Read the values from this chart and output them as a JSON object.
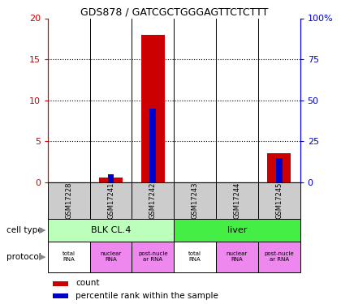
{
  "title": "GDS878 / GATCGCTGGGAGTTCTCTTT",
  "samples": [
    "GSM17228",
    "GSM17241",
    "GSM17242",
    "GSM17243",
    "GSM17244",
    "GSM17245"
  ],
  "counts": [
    0,
    0.6,
    18.0,
    0,
    0,
    3.6
  ],
  "percentiles": [
    0,
    5,
    45,
    0,
    0,
    15
  ],
  "ylim_left": [
    0,
    20
  ],
  "ylim_right": [
    0,
    100
  ],
  "yticks_left": [
    0,
    5,
    10,
    15,
    20
  ],
  "yticks_right": [
    0,
    25,
    50,
    75,
    100
  ],
  "bar_width": 0.55,
  "blue_bar_width": 0.15,
  "count_color": "#cc0000",
  "percentile_color": "#0000cc",
  "cell_type_row": {
    "groups": [
      {
        "label": "BLK CL.4",
        "start": 0,
        "end": 3,
        "color": "#bbffbb"
      },
      {
        "label": "liver",
        "start": 3,
        "end": 6,
        "color": "#44ee44"
      }
    ]
  },
  "protocol_row": {
    "labels": [
      "total\nRNA",
      "nuclear\nRNA",
      "post-nucle\nar RNA",
      "total\nRNA",
      "nuclear\nRNA",
      "post-nucle\nar RNA"
    ],
    "colors": [
      "#ffffff",
      "#ee88ee",
      "#ee88ee",
      "#ffffff",
      "#ee88ee",
      "#ee88ee"
    ]
  },
  "sample_bg_color": "#cccccc",
  "left_label_color": "#cc0000",
  "right_label_color": "#0000cc"
}
